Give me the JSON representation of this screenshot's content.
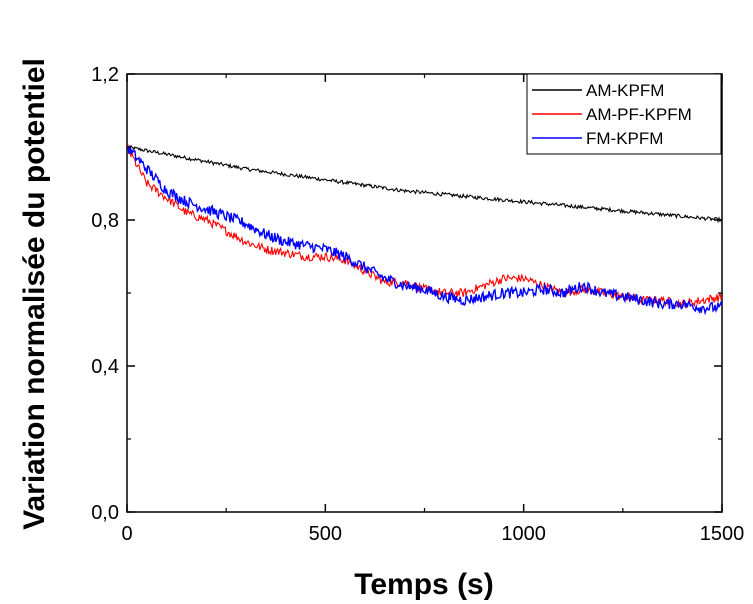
{
  "chart_data": {
    "type": "line",
    "title": "",
    "xlabel": "Temps (s)",
    "ylabel": "Variation normalisée du potentiel",
    "xlim": [
      0,
      1500
    ],
    "ylim": [
      0,
      1.2
    ],
    "x_ticks": [
      0,
      500,
      1000,
      1500
    ],
    "x_tick_labels": [
      "0",
      "500",
      "1000",
      "1500"
    ],
    "y_ticks": [
      0,
      0.4,
      0.8,
      1.2
    ],
    "y_tick_labels": [
      "0,0",
      "0,4",
      "0,8",
      "1,2"
    ],
    "grid": false,
    "legend_position": "top-right",
    "series": [
      {
        "name": "AM-KPFM",
        "color": "#000000",
        "x": [
          0,
          100,
          200,
          300,
          400,
          500,
          600,
          700,
          800,
          900,
          1000,
          1100,
          1200,
          1300,
          1400,
          1500
        ],
        "y": [
          1.0,
          0.98,
          0.96,
          0.94,
          0.925,
          0.91,
          0.895,
          0.88,
          0.87,
          0.86,
          0.85,
          0.84,
          0.83,
          0.82,
          0.81,
          0.8
        ]
      },
      {
        "name": "AM-PF-KPFM",
        "color": "#ff0000",
        "x": [
          0,
          50,
          100,
          150,
          200,
          250,
          300,
          350,
          400,
          450,
          500,
          550,
          600,
          650,
          700,
          750,
          800,
          850,
          900,
          950,
          1000,
          1050,
          1100,
          1150,
          1200,
          1250,
          1300,
          1350,
          1400,
          1450,
          1500
        ],
        "y": [
          1.0,
          0.9,
          0.86,
          0.82,
          0.8,
          0.77,
          0.74,
          0.72,
          0.71,
          0.7,
          0.7,
          0.69,
          0.66,
          0.63,
          0.63,
          0.61,
          0.6,
          0.6,
          0.62,
          0.64,
          0.64,
          0.62,
          0.6,
          0.61,
          0.6,
          0.59,
          0.58,
          0.58,
          0.57,
          0.58,
          0.59
        ]
      },
      {
        "name": "FM-KPFM",
        "color": "#0000ff",
        "x": [
          0,
          50,
          100,
          150,
          200,
          250,
          300,
          350,
          400,
          450,
          500,
          550,
          600,
          650,
          700,
          750,
          800,
          850,
          900,
          950,
          1000,
          1050,
          1100,
          1150,
          1200,
          1250,
          1300,
          1350,
          1400,
          1450,
          1500
        ],
        "y": [
          1.0,
          0.94,
          0.88,
          0.85,
          0.83,
          0.81,
          0.79,
          0.76,
          0.74,
          0.73,
          0.72,
          0.7,
          0.67,
          0.64,
          0.62,
          0.61,
          0.59,
          0.58,
          0.59,
          0.6,
          0.6,
          0.61,
          0.6,
          0.62,
          0.6,
          0.59,
          0.58,
          0.57,
          0.57,
          0.56,
          0.56
        ]
      }
    ]
  }
}
